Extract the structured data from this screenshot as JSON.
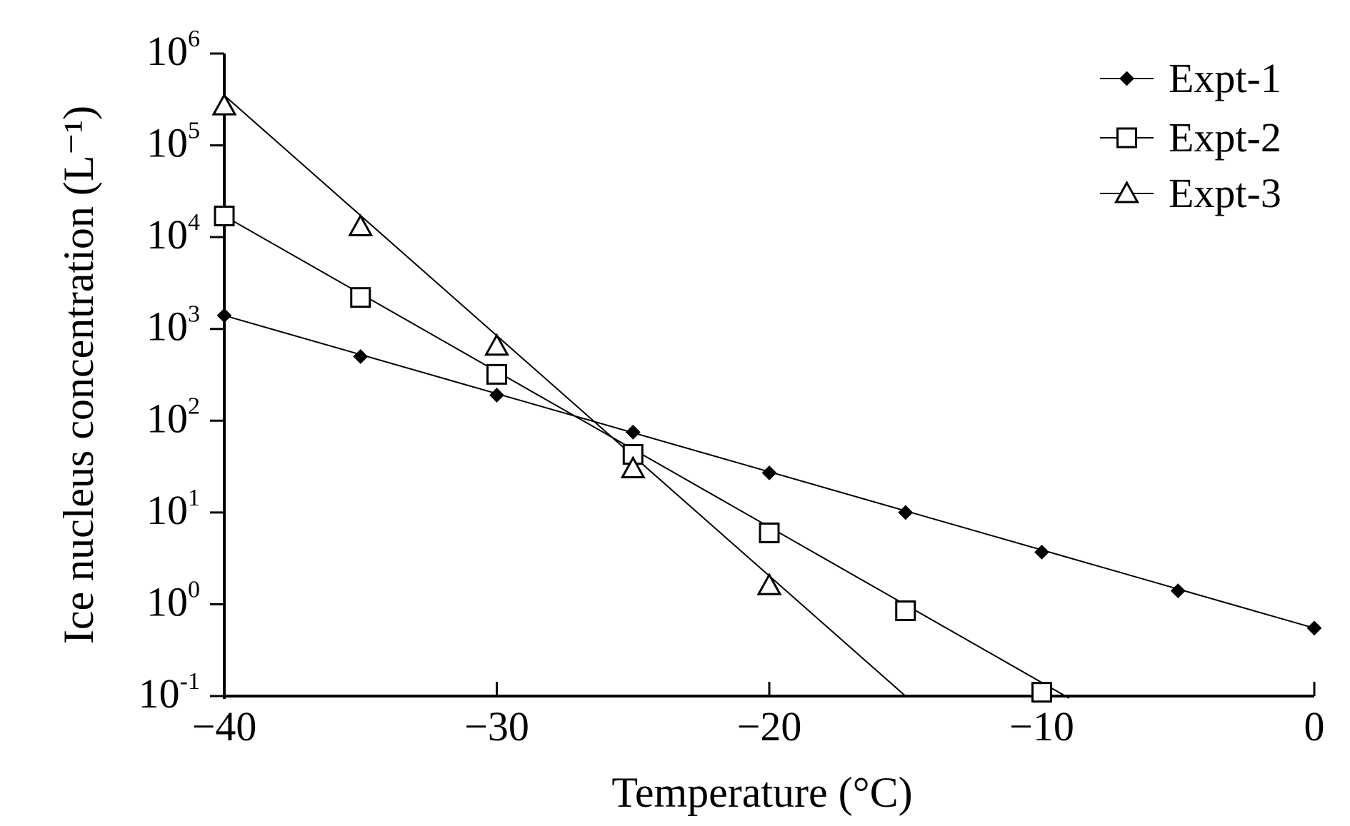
{
  "chart_data": {
    "type": "line",
    "title": "",
    "xlabel": "Temperature (°C)",
    "ylabel": "Ice nucleus concentration (L⁻¹)",
    "xlim": [
      -40,
      0
    ],
    "ylim": [
      0.1,
      1000000
    ],
    "yscale": "log",
    "x_ticks": [
      {
        "value": -40,
        "label": "−40"
      },
      {
        "value": -30,
        "label": "−30"
      },
      {
        "value": -20,
        "label": "−20"
      },
      {
        "value": -10,
        "label": "−10"
      },
      {
        "value": 0,
        "label": "0"
      }
    ],
    "y_ticks": [
      {
        "value": 0.1,
        "base": "10",
        "exp": "-1"
      },
      {
        "value": 1,
        "base": "10",
        "exp": "0"
      },
      {
        "value": 10,
        "base": "10",
        "exp": "1"
      },
      {
        "value": 100,
        "base": "10",
        "exp": "2"
      },
      {
        "value": 1000,
        "base": "10",
        "exp": "3"
      },
      {
        "value": 10000,
        "base": "10",
        "exp": "4"
      },
      {
        "value": 100000,
        "base": "10",
        "exp": "5"
      },
      {
        "value": 1000000,
        "base": "10",
        "exp": "6"
      }
    ],
    "legend_position": "top-right",
    "grid": false,
    "series": [
      {
        "name": "Expt-1",
        "marker": "diamond-filled",
        "x": [
          -40,
          -35,
          -30,
          -25,
          -20,
          -15,
          -10,
          -5,
          0
        ],
        "y": [
          1400,
          500,
          190,
          75,
          27,
          10,
          3.7,
          1.4,
          0.55
        ],
        "fit": {
          "x": [
            -40,
            0
          ],
          "y": [
            1400,
            0.55
          ]
        }
      },
      {
        "name": "Expt-2",
        "marker": "square-open",
        "x": [
          -40,
          -35,
          -30,
          -25,
          -20,
          -15,
          -10
        ],
        "y": [
          17000,
          2200,
          320,
          43,
          6,
          0.85,
          0.11
        ],
        "fit": {
          "x": [
            -40,
            -9
          ],
          "y": [
            17000,
            0.095
          ]
        }
      },
      {
        "name": "Expt-3",
        "marker": "triangle-open",
        "x": [
          -40,
          -35,
          -30,
          -25,
          -20
        ],
        "y": [
          270000,
          13000,
          650,
          30,
          1.6
        ],
        "fit": {
          "x": [
            -40,
            -15
          ],
          "y": [
            350000,
            0.1
          ]
        }
      }
    ]
  }
}
